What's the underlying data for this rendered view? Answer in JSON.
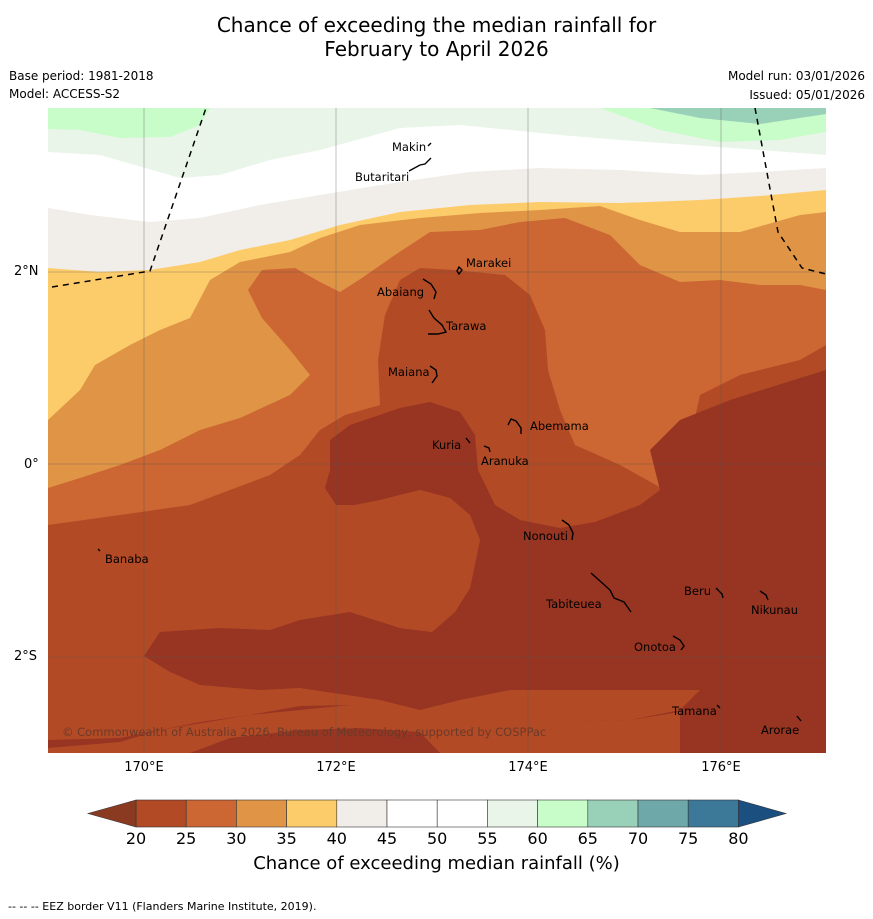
{
  "title": {
    "line1": "Chance of exceeding the median rainfall for",
    "line2": "February to April 2026"
  },
  "meta": {
    "base_period": "Base period: 1981-2018",
    "model": "Model: ACCESS-S2",
    "model_run": "Model run: 03/01/2026",
    "issued": "Issued: 05/01/2026"
  },
  "map": {
    "lat_labels": [
      "2°N",
      "0°",
      "2°S"
    ],
    "lon_labels": [
      "170°E",
      "172°E",
      "174°E",
      "176°E"
    ],
    "copyright": "© Commonwealth of Australia 2026, Bureau of Meteorology, supported by COSPPac",
    "islands": [
      {
        "name": "Makin"
      },
      {
        "name": "Butaritari"
      },
      {
        "name": "Marakei"
      },
      {
        "name": "Abaiang"
      },
      {
        "name": "Tarawa"
      },
      {
        "name": "Maiana"
      },
      {
        "name": "Abemama"
      },
      {
        "name": "Kuria"
      },
      {
        "name": "Aranuka"
      },
      {
        "name": "Nonouti"
      },
      {
        "name": "Banaba"
      },
      {
        "name": "Beru"
      },
      {
        "name": "Tabiteuea"
      },
      {
        "name": "Nikunau"
      },
      {
        "name": "Onotoa"
      },
      {
        "name": "Tamana"
      },
      {
        "name": "Arorae"
      }
    ]
  },
  "colorbar": {
    "title": "Chance of exceeding median rainfall (%)",
    "ticks": [
      "20",
      "25",
      "30",
      "35",
      "40",
      "45",
      "50",
      "55",
      "60",
      "65",
      "70",
      "75",
      "80"
    ],
    "colors": [
      "#b34a26",
      "#cc6633",
      "#e09546",
      "#fdcc6a",
      "#f1ede8",
      "#ffffff",
      "#ffffff",
      "#eaf5ea",
      "#c8fcc8",
      "#98d0b8",
      "#6fa8a8",
      "#3c7898"
    ],
    "under_color": "#8b3a22",
    "over_color": "#1a4f80"
  },
  "footnote": "--  --  -- EEZ border V11 (Flanders Marine Institute, 2019)."
}
